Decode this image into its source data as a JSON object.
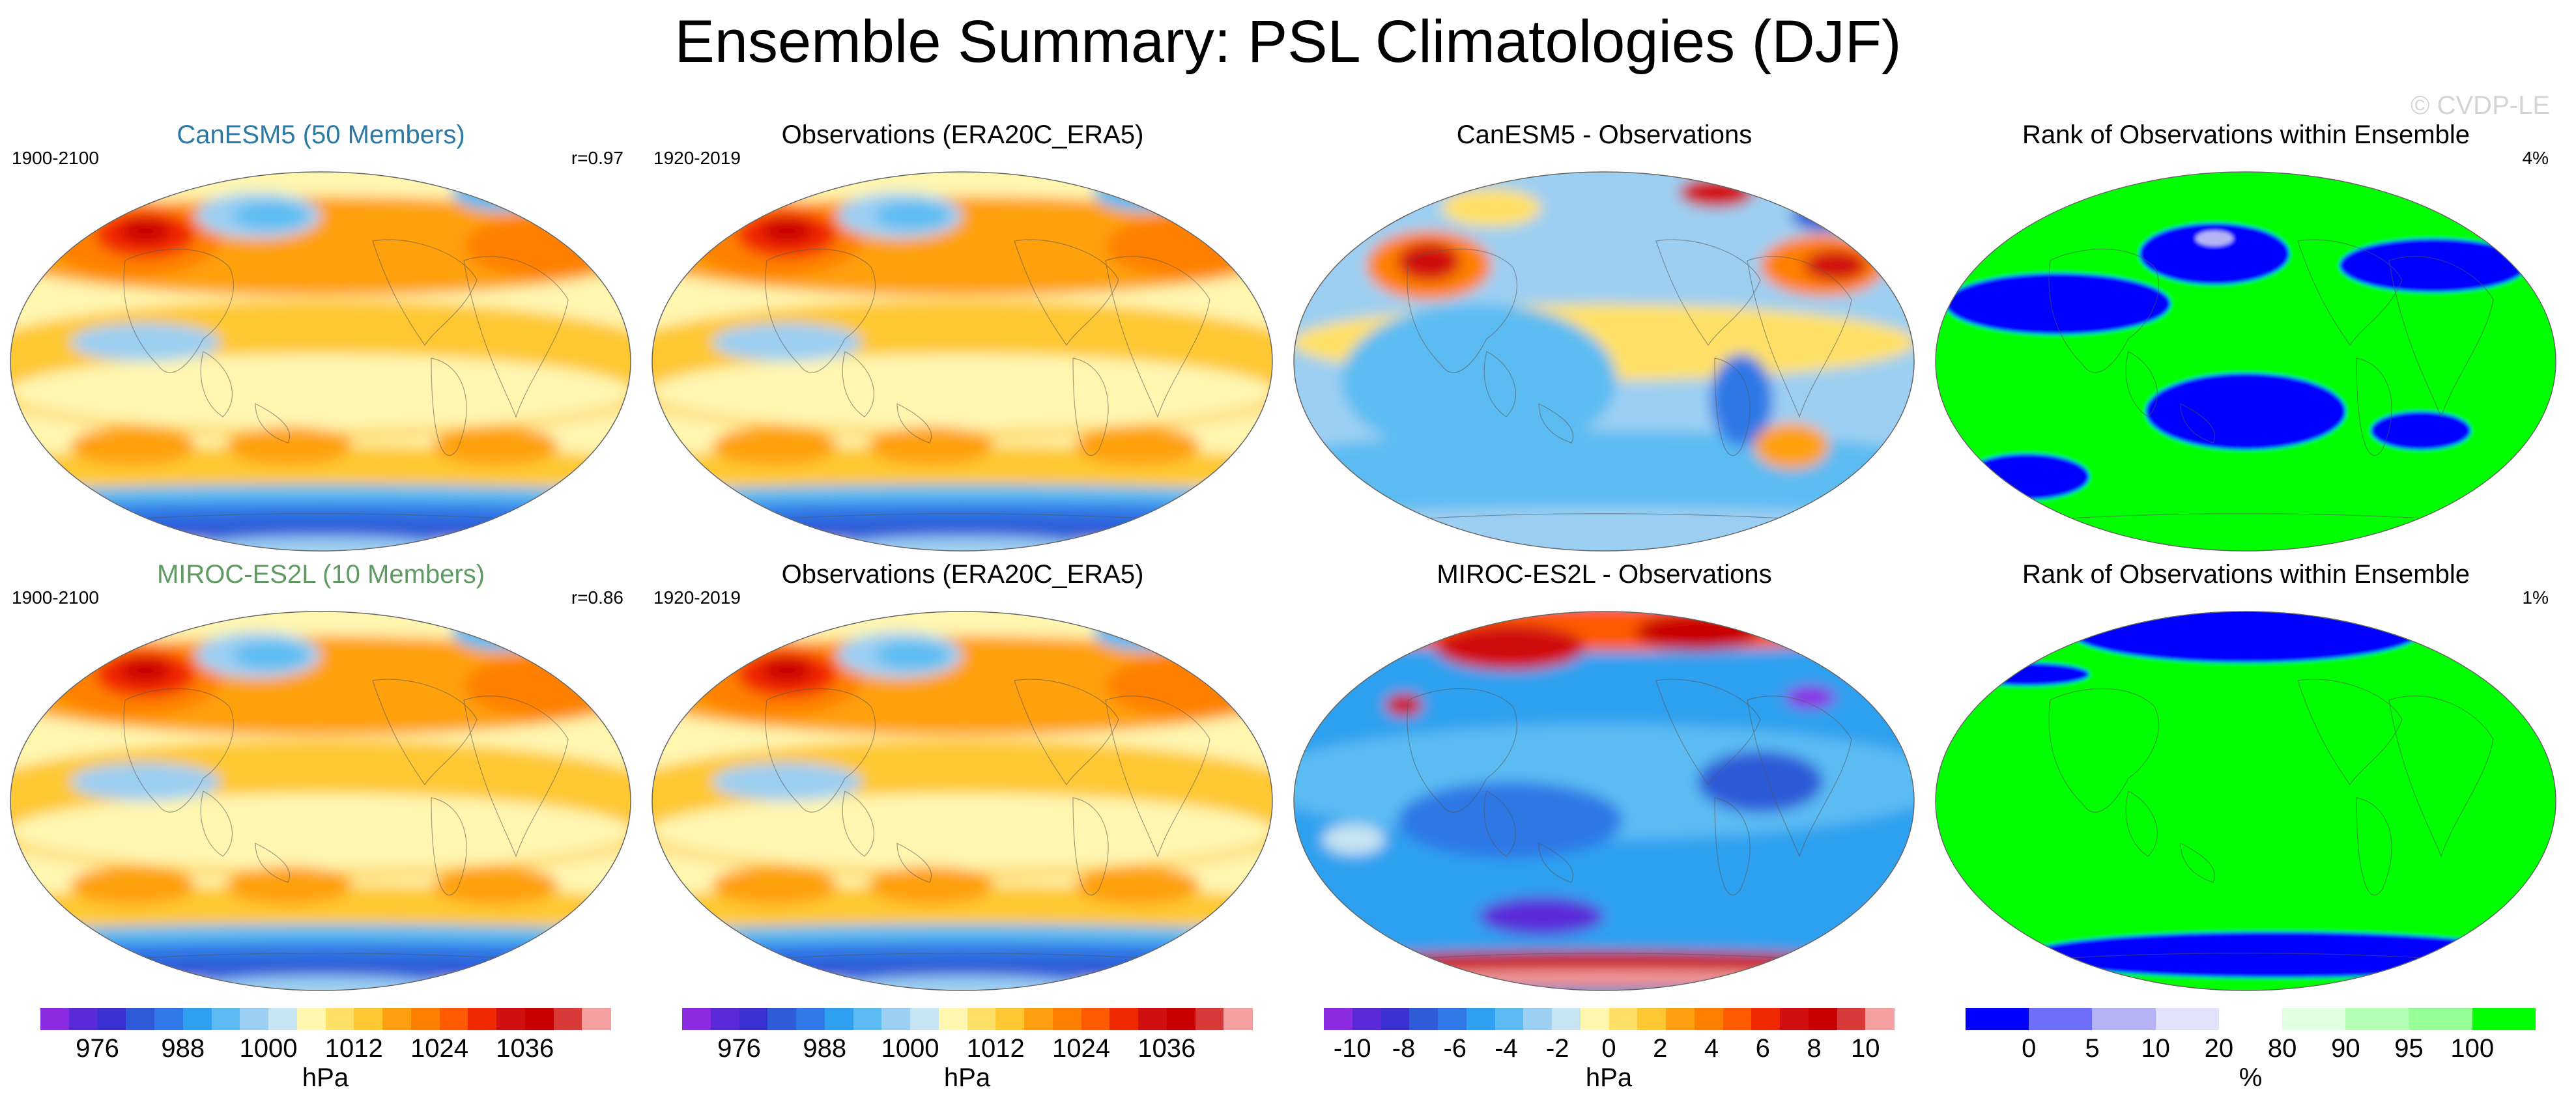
{
  "title": "Ensemble Summary: PSL Climatologies (DJF)",
  "watermark": "© CVDP-LE",
  "colors": {
    "psl": [
      "#8b2be2",
      "#5a2ad8",
      "#3a2fd0",
      "#2f5ad8",
      "#2f78e6",
      "#2fa0f0",
      "#5cbcf2",
      "#9ccff2",
      "#c6e4f2",
      "#fff6b0",
      "#ffe066",
      "#ffc832",
      "#ffa010",
      "#ff8000",
      "#ff5a00",
      "#f02800",
      "#d01010",
      "#c80000",
      "#d83a3a",
      "#f5a0a0"
    ],
    "rank": [
      "#0000ff",
      "#6e6efa",
      "#b4b4f5",
      "#e1e1fa",
      "#ffffff",
      "#e1ffe1",
      "#b4ffb4",
      "#96ff96",
      "#00ff00"
    ],
    "model1_label": "#2b7aa5",
    "model2_label": "#5f9a63"
  },
  "panels": [
    {
      "title": "CanESM5 (50 Members)",
      "left": "1900-2100",
      "right": "r=0.97",
      "type": "clim",
      "title_color": "model1_label"
    },
    {
      "title": "Observations (ERA20C_ERA5)",
      "left": "1920-2019",
      "right": "",
      "type": "clim",
      "title_color": ""
    },
    {
      "title": "CanESM5 - Observations",
      "left": "",
      "right": "",
      "type": "diff1",
      "title_color": ""
    },
    {
      "title": "Rank of Observations within Ensemble",
      "left": "",
      "right": "4%",
      "type": "rank1",
      "title_color": ""
    },
    {
      "title": "MIROC-ES2L (10 Members)",
      "left": "1900-2100",
      "right": "r=0.86",
      "type": "clim",
      "title_color": "model2_label"
    },
    {
      "title": "Observations (ERA20C_ERA5)",
      "left": "1920-2019",
      "right": "",
      "type": "clim",
      "title_color": ""
    },
    {
      "title": "MIROC-ES2L - Observations",
      "left": "",
      "right": "",
      "type": "diff2",
      "title_color": ""
    },
    {
      "title": "Rank of Observations within Ensemble",
      "left": "",
      "right": "1%",
      "type": "rank2",
      "title_color": ""
    }
  ],
  "colorbars": [
    {
      "units": "hPa",
      "labels": [
        "976",
        "988",
        "1000",
        "1012",
        "1024",
        "1036"
      ],
      "palette": "psl",
      "label_positions": [
        1,
        3,
        5,
        7,
        9,
        11
      ]
    },
    {
      "units": "hPa",
      "labels": [
        "976",
        "988",
        "1000",
        "1012",
        "1024",
        "1036"
      ],
      "palette": "psl",
      "label_positions": [
        1,
        3,
        5,
        7,
        9,
        11
      ]
    },
    {
      "units": "hPa",
      "labels": [
        "-10",
        "-8",
        "-6",
        "-4",
        "-2",
        "0",
        "2",
        "4",
        "6",
        "8",
        "10"
      ],
      "palette": "psl",
      "label_positions": [
        1,
        2,
        3,
        4,
        5,
        6,
        7,
        8,
        9,
        10,
        11
      ]
    },
    {
      "units": "%",
      "labels": [
        "0",
        "5",
        "10",
        "20",
        "80",
        "90",
        "95",
        "100"
      ],
      "palette": "rank",
      "label_positions": [
        1,
        2,
        3,
        4,
        5,
        6,
        7,
        8
      ]
    }
  ],
  "chart_data": [
    {
      "type": "heatmap",
      "title": "CanESM5 (50 Members)",
      "subtitle_left": "1900-2100",
      "subtitle_right": "r=0.97",
      "colorbar_label": "hPa",
      "range": [
        970,
        1045
      ]
    },
    {
      "type": "heatmap",
      "title": "Observations (ERA20C_ERA5)",
      "subtitle_left": "1920-2019",
      "colorbar_label": "hPa",
      "range": [
        970,
        1045
      ]
    },
    {
      "type": "heatmap",
      "title": "CanESM5 - Observations",
      "colorbar_label": "hPa",
      "range": [
        -11,
        11
      ]
    },
    {
      "type": "heatmap",
      "title": "Rank of Observations within Ensemble",
      "subtitle_right": "4%",
      "colorbar_label": "%",
      "range": [
        0,
        100
      ]
    },
    {
      "type": "heatmap",
      "title": "MIROC-ES2L (10 Members)",
      "subtitle_left": "1900-2100",
      "subtitle_right": "r=0.86",
      "colorbar_label": "hPa",
      "range": [
        970,
        1045
      ]
    },
    {
      "type": "heatmap",
      "title": "Observations (ERA20C_ERA5)",
      "subtitle_left": "1920-2019",
      "colorbar_label": "hPa",
      "range": [
        970,
        1045
      ]
    },
    {
      "type": "heatmap",
      "title": "MIROC-ES2L - Observations",
      "colorbar_label": "hPa",
      "range": [
        -11,
        11
      ]
    },
    {
      "type": "heatmap",
      "title": "Rank of Observations within Ensemble",
      "subtitle_right": "1%",
      "colorbar_label": "%",
      "range": [
        0,
        100
      ]
    }
  ]
}
